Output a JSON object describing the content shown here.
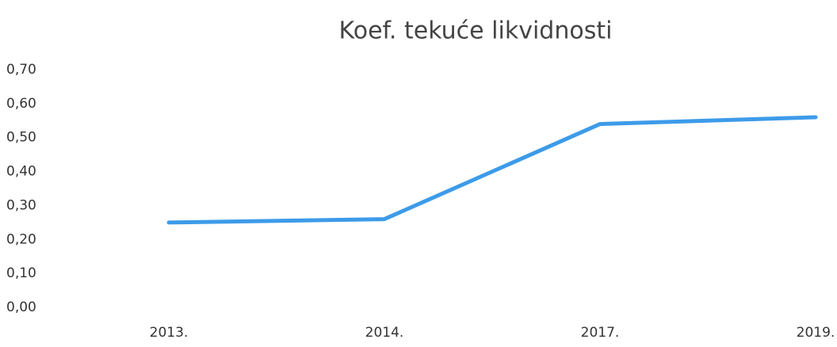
{
  "chart_data": {
    "type": "line",
    "title": "Koef. tekuće likvidnosti",
    "categories": [
      "2013.",
      "2014.",
      "2017.",
      "2019."
    ],
    "series": [
      {
        "name": "Koef. tekuće likvidnosti",
        "color": "#3d9be9",
        "values": [
          0.25,
          0.26,
          0.54,
          0.56
        ]
      }
    ],
    "ylim": [
      0,
      0.7
    ],
    "yticks": [
      {
        "value": 0,
        "label": "0,00"
      },
      {
        "value": 0.1,
        "label": "0,10"
      },
      {
        "value": 0.2,
        "label": "0,20"
      },
      {
        "value": 0.3,
        "label": "0,30"
      },
      {
        "value": 0.4,
        "label": "0,40"
      },
      {
        "value": 0.5,
        "label": "0,50"
      },
      {
        "value": 0.6,
        "label": "0,60"
      },
      {
        "value": 0.7,
        "label": "0,70"
      }
    ],
    "grid": false,
    "legend": false
  }
}
